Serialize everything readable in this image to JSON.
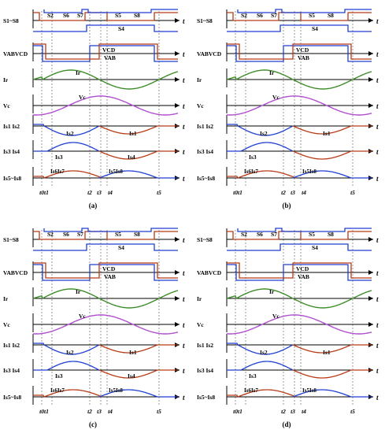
{
  "colors": {
    "blue": "#1f3fd1",
    "red": "#b83a16",
    "green": "#3f8d2a",
    "purple": "#b04fd0",
    "axis": "#000000"
  },
  "panels": [
    {
      "id": "a",
      "caption": "(a)",
      "rows": {
        "s": "S1~S8",
        "v": "VABVCD",
        "ir": "Ir",
        "vc": "Vc",
        "i12": "Is1 Is2",
        "i34": "Is3 Is4",
        "i58": "Is5~Is8"
      },
      "axis_symbol": "t",
      "switch_labels": [
        "S2",
        "S6",
        "S7",
        "S5",
        "S8",
        "S4"
      ],
      "trace_labels": {
        "vcd": "VCD",
        "vab": "VAB",
        "ir": "Ir",
        "vc": "Vc",
        "is2": "Is2",
        "is1": "Is1",
        "is3": "Is3",
        "is4": "Is4",
        "is6is7": "Is6Is7",
        "is5is8": "Is5Is8"
      },
      "time_marks": [
        "t0t1",
        "t2",
        "t3",
        "t4",
        "t5"
      ]
    },
    {
      "id": "b",
      "caption": "(b)",
      "rows": {
        "s": "S1~S8",
        "v": "VABVCD",
        "ir": "Ir",
        "vc": "Vc",
        "i12": "Is1 Is2",
        "i34": "Is3 Is4",
        "i58": "Is5~Is8"
      },
      "axis_symbol": "t",
      "switch_labels": [
        "S2",
        "S6",
        "S7",
        "S5",
        "S8",
        "S4"
      ],
      "trace_labels": {
        "vcd": "VCD",
        "vab": "VAB",
        "ir": "Ir",
        "vc": "Vc",
        "is2": "Is2",
        "is1": "Is1",
        "is3": "Is3",
        "is4": "",
        "is6is7": "Is6Is7",
        "is5is8": "Is5Is8"
      },
      "time_marks": [
        "t0t1",
        "t2",
        "t3",
        "t4",
        "t5"
      ]
    },
    {
      "id": "c",
      "caption": "(c)",
      "rows": {
        "s": "S1~S8",
        "v": "VABVCD",
        "ir": "Ir",
        "vc": "Vc",
        "i12": "Is1 Is2",
        "i34": "Is3 Is4",
        "i58": "Is5~Is8"
      },
      "axis_symbol": "t",
      "switch_labels": [
        "S2",
        "S6",
        "S7",
        "S5",
        "S8",
        "S4"
      ],
      "trace_labels": {
        "vcd": "VCD",
        "vab": "VAB",
        "ir": "Ir",
        "vc": "Vc",
        "is2": "Is2",
        "is1": "Is1",
        "is3": "Is3",
        "is4": "Is4",
        "is6is7": "Is6Is7",
        "is5is8": "Is5Is8"
      },
      "time_marks": [
        "t0t1",
        "t2",
        "t3",
        "t4",
        "t5"
      ]
    },
    {
      "id": "d",
      "caption": "(d)",
      "rows": {
        "s": "S1~S8",
        "v": "VABVCD",
        "ir": "Ir",
        "vc": "Vc",
        "i12": "Is1 Is2",
        "i34": "Is3 Is4",
        "i58": "Is5~Is8"
      },
      "axis_symbol": "t",
      "switch_labels": [
        "S2",
        "S6",
        "S7",
        "S5",
        "S8",
        "S4"
      ],
      "trace_labels": {
        "vcd": "VCD",
        "vab": "VAB",
        "ir": "Ir",
        "vc": "Vc",
        "is2": "Is2",
        "is1": "Is1",
        "is3": "Is3",
        "is4": "",
        "is6is7": "Is6Is7",
        "is5is8": "Is5Is8"
      },
      "time_marks": [
        "t0t1",
        "t2",
        "t3",
        "t4",
        "t5"
      ]
    }
  ]
}
